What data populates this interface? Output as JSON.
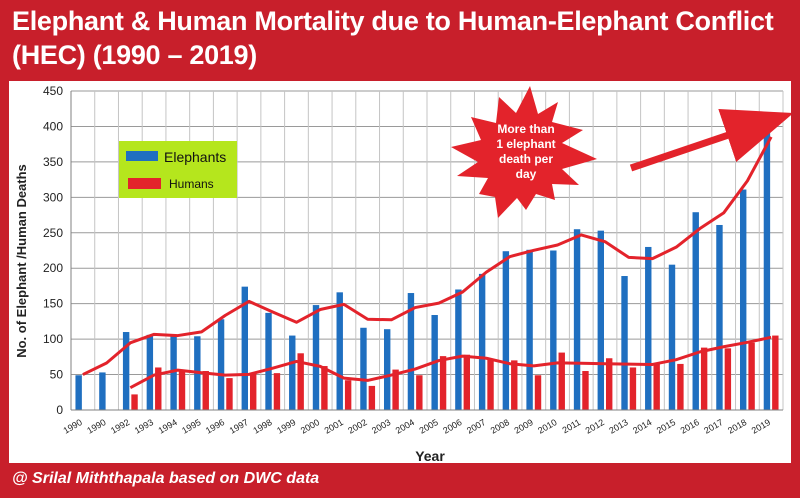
{
  "header": {
    "title_line1": "Elephant & Human Mortality due to Human-Elephant Conflict",
    "title_line2": "(HEC) (1990 – 2019)"
  },
  "footer": {
    "credit": "@ Srilal Miththapala based on DWC data"
  },
  "annotation": {
    "line1": "More than",
    "line2": "1 elephant",
    "line3": "death per",
    "line4": "day"
  },
  "colors": {
    "frame": "#c81f2b",
    "elephants": "#1f6fc0",
    "humans": "#e3232b",
    "legend_bg": "#b5e61d",
    "starburst": "#e3232b"
  },
  "chart_data": {
    "type": "bar",
    "xlabel": "Year",
    "ylabel": "No. of Elephant /Human  Deaths",
    "ylim": [
      0,
      450
    ],
    "yticks": [
      0,
      50,
      100,
      150,
      200,
      250,
      300,
      350,
      400,
      450
    ],
    "grid": true,
    "legend": {
      "placement": "top-left",
      "entries": [
        "Elephants",
        "Humans"
      ]
    },
    "categories": [
      "1990",
      "1990",
      "1992",
      "1993",
      "1994",
      "1995",
      "1996",
      "1997",
      "1998",
      "1999",
      "2000",
      "2001",
      "2002",
      "2003",
      "2004",
      "2005",
      "2006",
      "2007",
      "2008",
      "2009",
      "2010",
      "2011",
      "2012",
      "2013",
      "2014",
      "2015",
      "2016",
      "2017",
      "2018",
      "2019"
    ],
    "series": [
      {
        "name": "Elephants",
        "values": [
          49,
          53,
          110,
          106,
          105,
          104,
          128,
          174,
          137,
          105,
          148,
          166,
          116,
          114,
          165,
          134,
          170,
          192,
          224,
          226,
          225,
          255,
          253,
          189,
          230,
          205,
          279,
          261,
          311,
          410
        ]
      },
      {
        "name": "Humans",
        "values": [
          null,
          null,
          22,
          60,
          55,
          55,
          45,
          52,
          52,
          80,
          62,
          42,
          34,
          57,
          49,
          76,
          78,
          72,
          70,
          49,
          81,
          55,
          73,
          60,
          66,
          65,
          88,
          87,
          95,
          105
        ]
      }
    ]
  }
}
